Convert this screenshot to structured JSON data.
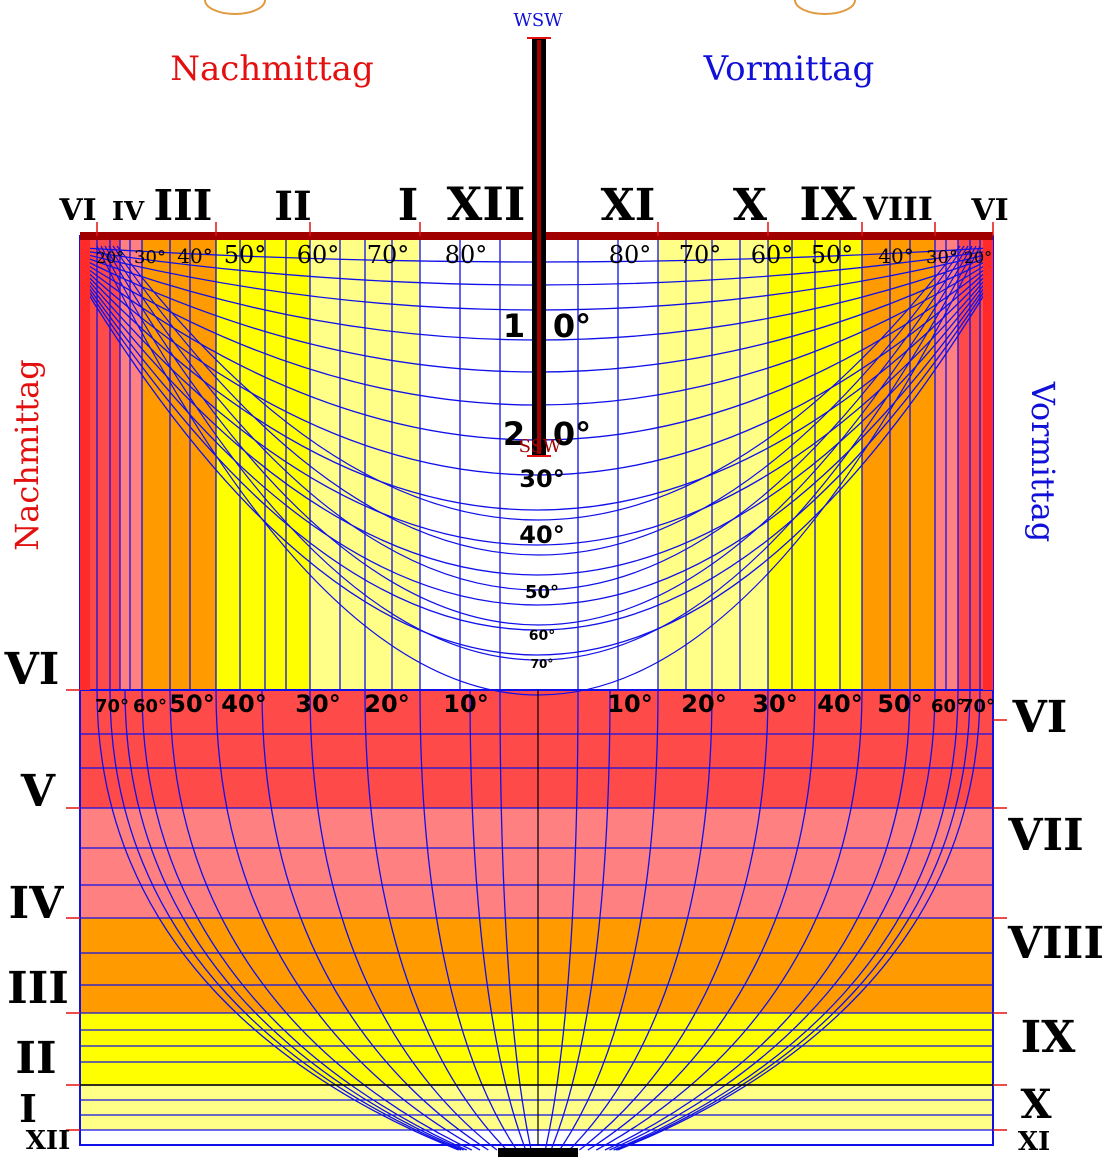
{
  "title_compass_top": "WSW",
  "label_compass_mid": "SSW",
  "label_afternoon": "Nachmittag",
  "label_morning": "Vormittag",
  "color_afternoon": "#e41010",
  "color_morning": "#1010d8",
  "top_hours": [
    {
      "label": "VI"
    },
    {
      "label": "IV"
    },
    {
      "label": "III"
    },
    {
      "label": "II"
    },
    {
      "label": "I"
    },
    {
      "label": "XII"
    },
    {
      "label": "XI"
    },
    {
      "label": "X"
    },
    {
      "label": "IX"
    },
    {
      "label": "VIII"
    },
    {
      "label": "VI"
    }
  ],
  "top_degree_labels_left": [
    "20°",
    "30°",
    "40°",
    "50°",
    "60°",
    "70°",
    "80°"
  ],
  "top_degree_labels_right": [
    "80°",
    "70°",
    "60°",
    "50°",
    "40°",
    "30°",
    "20°"
  ],
  "center_degree_labels": [
    "10°",
    "20°",
    "30°",
    "40°",
    "50°",
    "60°",
    "70°"
  ],
  "mid_degree_labels_left": [
    "70°",
    "60°",
    "50°",
    "40°",
    "30°",
    "20°",
    "10°"
  ],
  "mid_degree_labels_right": [
    "10°",
    "20°",
    "30°",
    "40°",
    "50°",
    "60°",
    "70°"
  ],
  "left_hours": [
    "VI",
    "V",
    "IV",
    "III",
    "II",
    "I",
    "XII"
  ],
  "right_hours": [
    "VI",
    "VII",
    "VIII",
    "IX",
    "X",
    "XI"
  ],
  "band_colors": {
    "red": "#ff4a4a",
    "salmon": "#ff8080",
    "orange": "#ff9a00",
    "yellow": "#ffff00",
    "lightyellow": "#ffff88",
    "white": "#ffffff"
  },
  "grid_color": "#1010e8",
  "gnomon_color": "#000000",
  "beam_color": "#a00000"
}
